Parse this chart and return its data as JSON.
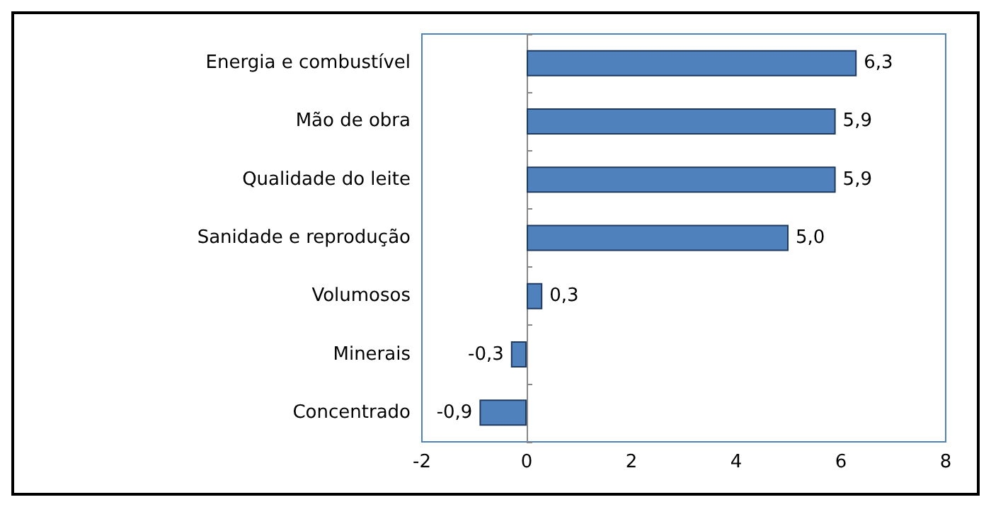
{
  "chart_data": {
    "type": "bar",
    "orientation": "horizontal",
    "categories": [
      "Energia e combustível",
      "Mão de obra",
      "Qualidade do leite",
      "Sanidade e reprodução",
      "Volumosos",
      "Minerais",
      "Concentrado"
    ],
    "values": [
      6.3,
      5.9,
      5.9,
      5.0,
      0.3,
      -0.3,
      -0.9
    ],
    "value_labels": [
      "6,3",
      "5,9",
      "5,9",
      "5,0",
      "0,3",
      "-0,3",
      "-0,9"
    ],
    "color": "#4f81bd",
    "xlim": [
      -2,
      8
    ],
    "xticks": [
      -2,
      0,
      2,
      4,
      6,
      8
    ]
  }
}
